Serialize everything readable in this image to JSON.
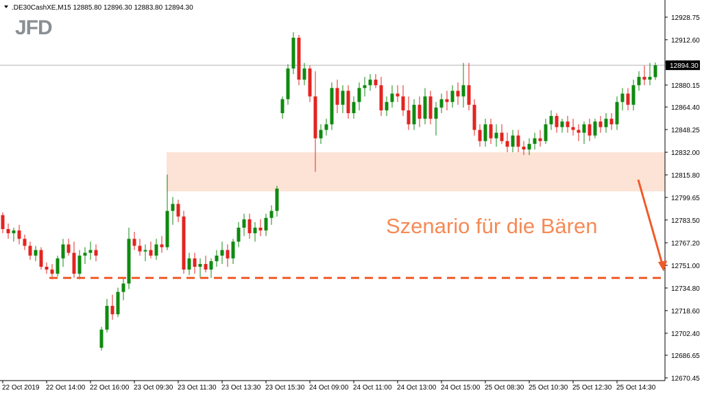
{
  "chart_data": {
    "type": "candlestick",
    "header": ".DE30CashXE,M15  12885.80 12896.30 12883.80 12894.30",
    "logo": "JFD",
    "annotation": "Szenario für die Bären",
    "up_color": "#0f8a0f",
    "down_color": "#e32421",
    "ylim": [
      12668.49,
      12940.05
    ],
    "yticks": [
      {
        "value": 12670.45,
        "label": "12670.45"
      },
      {
        "value": 12686.65,
        "label": "12686.65"
      },
      {
        "value": 12702.4,
        "label": "12702.40"
      },
      {
        "value": 12718.6,
        "label": "12718.60"
      },
      {
        "value": 12734.8,
        "label": "12734.80"
      },
      {
        "value": 12751.0,
        "label": "12751.00"
      },
      {
        "value": 12767.2,
        "label": "12767.20"
      },
      {
        "value": 12783.5,
        "label": "12783.50"
      },
      {
        "value": 12799.65,
        "label": "12799.65"
      },
      {
        "value": 12815.8,
        "label": "12815.80"
      },
      {
        "value": 12832.0,
        "label": "12832.00"
      },
      {
        "value": 12848.25,
        "label": "12848.25"
      },
      {
        "value": 12864.4,
        "label": "12864.40"
      },
      {
        "value": 12880.15,
        "label": "12880.15"
      },
      {
        "value": 12896.45,
        "label": "12896.45"
      },
      {
        "value": 12912.6,
        "label": "12912.60"
      },
      {
        "value": 12928.75,
        "label": "12928.75"
      }
    ],
    "current_price": {
      "value": 12894.3,
      "label": "12894.30"
    },
    "resistance_zone": {
      "low": 12804,
      "high": 12832
    },
    "target_level": 12742,
    "categories": [
      "22 Oct 2019",
      null,
      null,
      null,
      null,
      null,
      null,
      null,
      "22 Oct 14:00",
      null,
      null,
      null,
      null,
      null,
      null,
      null,
      "22 Oct 16:00",
      null,
      null,
      null,
      null,
      null,
      null,
      null,
      "23 Oct 09:30",
      null,
      null,
      null,
      null,
      null,
      null,
      null,
      "23 Oct 11:30",
      null,
      null,
      null,
      null,
      null,
      null,
      null,
      "23 Oct 13:30",
      null,
      null,
      null,
      null,
      null,
      null,
      null,
      "23 Oct 15:30",
      null,
      null,
      null,
      null,
      null,
      null,
      null,
      "24 Oct 09:00",
      null,
      null,
      null,
      null,
      null,
      null,
      null,
      "24 Oct 11:00",
      null,
      null,
      null,
      null,
      null,
      null,
      null,
      "24 Oct 13:00",
      null,
      null,
      null,
      null,
      null,
      null,
      null,
      "24 Oct 15:00",
      null,
      null,
      null,
      null,
      null,
      null,
      null,
      "25 Oct 08:30",
      null,
      null,
      null,
      null,
      null,
      null,
      null,
      "25 Oct 10:30",
      null,
      null,
      null,
      null,
      null,
      null,
      null,
      "25 Oct 12:30",
      null,
      null,
      null,
      null,
      null,
      null,
      null,
      "25 Oct 14:30",
      null,
      null,
      null,
      null,
      null,
      null,
      null
    ],
    "open": [
      12787,
      12777,
      12774,
      12776,
      12770,
      12765,
      12758,
      12762,
      12750,
      12748,
      12745,
      12756,
      12766,
      12760,
      12745,
      12758,
      12760,
      12762,
      12692,
      12705,
      12722,
      12716,
      12732,
      12738,
      12770,
      12765,
      12761,
      12762,
      12758,
      12766,
      12764,
      12790,
      12795,
      12786,
      12748,
      12756,
      12750,
      12752,
      12748,
      12754,
      12758,
      12762,
      12756,
      12768,
      12778,
      12784,
      12774,
      12778,
      12776,
      12785,
      12790,
      12860,
      12870,
      12892,
      12914,
      12884,
      12892,
      12872,
      12842,
      12848,
      12852,
      12878,
      12866,
      12876,
      12860,
      12868,
      12878,
      12880,
      12884,
      12880,
      12862,
      12868,
      12874,
      12872,
      12862,
      12852,
      12866,
      12856,
      12872,
      12856,
      12864,
      12870,
      12868,
      12876,
      12872,
      12880,
      12866,
      12848,
      12840,
      12852,
      12842,
      12846,
      12840,
      12836,
      12844,
      12836,
      12834,
      12838,
      12842,
      12840,
      12852,
      12858,
      12850,
      12854,
      12850,
      12848,
      12846,
      12852,
      12844,
      12854,
      12850,
      12856,
      12852,
      12868,
      12874,
      12866,
      12880,
      12886,
      12884,
      12885.8
    ],
    "high": [
      12789,
      12781,
      12778,
      12780,
      12773,
      12768,
      12765,
      12764,
      12753,
      12752,
      12758,
      12770,
      12770,
      12768,
      12762,
      12764,
      12768,
      12766,
      12707,
      12727,
      12730,
      12735,
      12742,
      12778,
      12775,
      12770,
      12766,
      12768,
      12770,
      12772,
      12816,
      12800,
      12798,
      12790,
      12760,
      12760,
      12756,
      12758,
      12756,
      12762,
      12768,
      12766,
      12770,
      12782,
      12788,
      12788,
      12782,
      12784,
      12788,
      12794,
      12808,
      12872,
      12895,
      12918,
      12916,
      12896,
      12894,
      12890,
      12852,
      12856,
      12882,
      12884,
      12880,
      12880,
      12872,
      12882,
      12886,
      12888,
      12888,
      12886,
      12872,
      12880,
      12880,
      12880,
      12872,
      12870,
      12872,
      12878,
      12876,
      12868,
      12874,
      12876,
      12880,
      12882,
      12896,
      12896,
      12870,
      12852,
      12856,
      12856,
      12852,
      12852,
      12846,
      12848,
      12848,
      12840,
      12842,
      12846,
      12848,
      12856,
      12862,
      12860,
      12856,
      12858,
      12856,
      12852,
      12854,
      12856,
      12856,
      12858,
      12860,
      12860,
      12872,
      12878,
      12878,
      12884,
      12890,
      12894,
      12896,
      12896.3
    ],
    "low": [
      12774,
      12770,
      12768,
      12766,
      12762,
      12755,
      12754,
      12748,
      12745,
      12741,
      12743,
      12750,
      12758,
      12742,
      12741,
      12752,
      12755,
      12754,
      12690,
      12703,
      12712,
      12714,
      12726,
      12734,
      12762,
      12758,
      12754,
      12756,
      12755,
      12760,
      12762,
      12780,
      12782,
      12745,
      12744,
      12745,
      12742,
      12746,
      12742,
      12750,
      12752,
      12750,
      12752,
      12764,
      12772,
      12770,
      12768,
      12772,
      12772,
      12780,
      12786,
      12856,
      12866,
      12888,
      12880,
      12880,
      12868,
      12818,
      12838,
      12844,
      12848,
      12860,
      12860,
      12856,
      12856,
      12862,
      12872,
      12876,
      12878,
      12858,
      12858,
      12864,
      12868,
      12858,
      12848,
      12848,
      12850,
      12852,
      12852,
      12844,
      12860,
      12862,
      12864,
      12866,
      12864,
      12862,
      12844,
      12836,
      12836,
      12838,
      12836,
      12838,
      12832,
      12832,
      12832,
      12830,
      12830,
      12834,
      12836,
      12838,
      12848,
      12846,
      12846,
      12846,
      12844,
      12840,
      12838,
      12840,
      12842,
      12846,
      12846,
      12848,
      12848,
      12862,
      12862,
      12862,
      12876,
      12880,
      12880,
      12883.8
    ],
    "close": [
      12777,
      12774,
      12776,
      12770,
      12765,
      12758,
      12762,
      12750,
      12748,
      12745,
      12756,
      12766,
      12760,
      12745,
      12758,
      12760,
      12762,
      12758,
      12705,
      12722,
      12716,
      12732,
      12738,
      12770,
      12765,
      12761,
      12762,
      12758,
      12766,
      12764,
      12790,
      12795,
      12786,
      12748,
      12756,
      12750,
      12752,
      12748,
      12754,
      12758,
      12762,
      12756,
      12768,
      12778,
      12784,
      12774,
      12778,
      12776,
      12785,
      12790,
      12806,
      12870,
      12892,
      12914,
      12884,
      12892,
      12872,
      12842,
      12848,
      12852,
      12878,
      12866,
      12876,
      12860,
      12868,
      12878,
      12880,
      12884,
      12880,
      12862,
      12868,
      12874,
      12872,
      12862,
      12852,
      12866,
      12856,
      12872,
      12856,
      12864,
      12870,
      12868,
      12876,
      12872,
      12880,
      12866,
      12848,
      12840,
      12852,
      12842,
      12846,
      12840,
      12836,
      12844,
      12836,
      12834,
      12838,
      12842,
      12840,
      12852,
      12858,
      12850,
      12854,
      12850,
      12848,
      12846,
      12852,
      12844,
      12854,
      12850,
      12856,
      12852,
      12868,
      12874,
      12866,
      12880,
      12886,
      12884,
      12886,
      12894.3
    ]
  }
}
